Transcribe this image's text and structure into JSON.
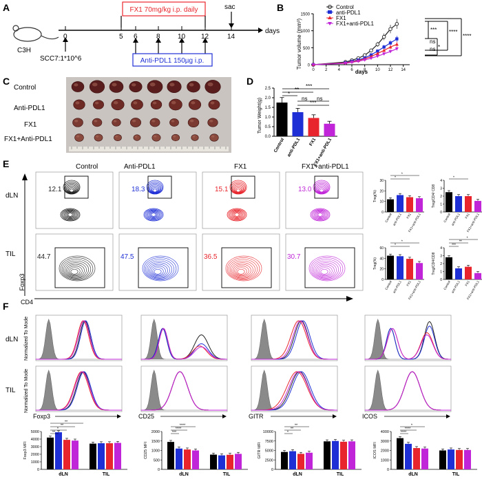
{
  "panels": {
    "A": "A",
    "B": "B",
    "C": "C",
    "D": "D",
    "E": "E",
    "F": "F"
  },
  "panelA": {
    "mouse_label": "C3H",
    "fx1_box": "FX1 70mg/kg i.p. daily",
    "sac": "sac",
    "days": "days",
    "ticks": [
      "0",
      "5",
      "6",
      "8",
      "10",
      "12",
      "14"
    ],
    "inoculation": "SCC7:1*10^6",
    "pdl1_box": "Anti-PDL1 150µg i.p."
  },
  "panelB": {
    "ylabel": "Tumor volume (mm³)",
    "xlabel": "days",
    "legend": [
      "Control",
      "anti-PDL1",
      "FX1",
      "FX1+anti-PDL1"
    ],
    "sig": [
      "***",
      "****",
      "****",
      "*",
      "ns",
      "ns"
    ],
    "chart_data": {
      "type": "line",
      "x": [
        0,
        5,
        6,
        7,
        8,
        9,
        10,
        11,
        12,
        13
      ],
      "xticks": [
        "0",
        "2",
        "4",
        "6",
        "8",
        "10",
        "12",
        "14"
      ],
      "yticks": [
        "0",
        "500",
        "1000",
        "1500"
      ],
      "xlim": [
        0,
        15
      ],
      "ylim": [
        0,
        1500
      ],
      "series": [
        {
          "name": "Control",
          "color": "#222222",
          "values": [
            0,
            80,
            130,
            190,
            280,
            420,
            600,
            820,
            1050,
            1200
          ]
        },
        {
          "name": "anti-PDL1",
          "color": "#1f2fd6",
          "values": [
            0,
            60,
            100,
            140,
            200,
            290,
            400,
            520,
            640,
            760
          ]
        },
        {
          "name": "FX1",
          "color": "#e8252c",
          "values": [
            0,
            55,
            90,
            120,
            170,
            240,
            330,
            420,
            520,
            600
          ]
        },
        {
          "name": "FX1+anti-PDL1",
          "color": "#c025d8",
          "values": [
            0,
            40,
            70,
            100,
            140,
            190,
            250,
            320,
            390,
            470
          ]
        }
      ]
    }
  },
  "panelC": {
    "rows": [
      "Control",
      "Anti-PDL1",
      "FX1",
      "FX1+Anti-PDL1"
    ]
  },
  "panelD": {
    "ylabel": "Tumor Weight(g)",
    "sig": [
      "*",
      "**",
      "***",
      "ns",
      "ns",
      "***"
    ],
    "chart_data": {
      "type": "bar",
      "categories": [
        "Control",
        "anti-PDL1",
        "FX1",
        "FX1+anti-PDL1"
      ],
      "values": [
        1.75,
        1.25,
        0.95,
        0.65
      ],
      "colors": [
        "#000000",
        "#1f2fd6",
        "#e8252c",
        "#c025d8"
      ],
      "yticks": [
        "0.0",
        "0.5",
        "1.0",
        "1.5",
        "2.0",
        "2.5"
      ],
      "ylim": [
        0,
        2.5
      ]
    }
  },
  "panelE": {
    "columns": [
      "Control",
      "Anti-PDL1",
      "FX1",
      "FX1+anti-PDL1"
    ],
    "rows": [
      "dLN",
      "TIL"
    ],
    "dln_values": [
      "12.1",
      "18.3",
      "15.1",
      "13.0"
    ],
    "til_values": [
      "44.7",
      "47.5",
      "36.5",
      "30.7"
    ],
    "value_colors": [
      "#222222",
      "#1f2fd6",
      "#e8252c",
      "#c025d8"
    ],
    "ylabel": "Foxp3",
    "xlabel": "CD4",
    "bar_charts": [
      {
        "ylabel": "Treg(%)",
        "yticks": [
          "0",
          "10",
          "20",
          "30"
        ],
        "ylim": [
          0,
          30
        ],
        "values": [
          12,
          16,
          14,
          13
        ],
        "sig": [
          "*",
          "*"
        ]
      },
      {
        "ylabel": "Treg/CD4/ CD8",
        "yticks": [
          "0",
          "1",
          "2",
          "3",
          "4"
        ],
        "ylim": [
          0,
          4
        ],
        "values": [
          2.5,
          2.0,
          2.0,
          1.4
        ],
        "sig": [
          "*"
        ]
      },
      {
        "ylabel": "Treg(%)",
        "yticks": [
          "0",
          "20",
          "40",
          "60"
        ],
        "ylim": [
          0,
          60
        ],
        "values": [
          45,
          44,
          39,
          31
        ],
        "sig": [
          "*",
          "*"
        ]
      },
      {
        "ylabel": "Treg/CD4/CD8",
        "yticks": [
          "0",
          "1",
          "2",
          "3",
          "4"
        ],
        "ylim": [
          0,
          4
        ],
        "values": [
          2.8,
          1.4,
          1.6,
          0.8
        ],
        "sig": [
          "***",
          "**",
          "*"
        ]
      }
    ],
    "categories": [
      "Control",
      "anti-PDL1",
      "FX1",
      "FX1+anti-PDL1"
    ]
  },
  "panelF": {
    "rows": [
      "dLN",
      "TIL"
    ],
    "ylabel": "Normalized To Mode",
    "markers": [
      "Foxp3",
      "CD25",
      "GITR",
      "ICOS"
    ],
    "mfi_labels": [
      "Foxp3 MFI",
      "CD25 MFI",
      "GITR MFI",
      "ICOS MFI"
    ],
    "group_labels": [
      "dLN",
      "TIL"
    ],
    "mfi_charts": [
      {
        "yticks": [
          "0",
          "1000",
          "2000",
          "3000",
          "4000",
          "5000"
        ],
        "ylim": [
          0,
          5000
        ],
        "dln": [
          4200,
          4900,
          3900,
          3800
        ],
        "til": [
          3400,
          3450,
          3450,
          3500
        ],
        "sig": [
          "**",
          "*",
          "**",
          "**"
        ]
      },
      {
        "yticks": [
          "0",
          "500",
          "1000",
          "1500",
          "2000"
        ],
        "ylim": [
          0,
          2000
        ],
        "dln": [
          1450,
          1100,
          1050,
          1000
        ],
        "til": [
          780,
          740,
          770,
          820
        ],
        "sig": [
          "***",
          "****",
          "****"
        ]
      },
      {
        "yticks": [
          "0",
          "2500",
          "5000",
          "7500",
          "10000"
        ],
        "ylim": [
          0,
          10000
        ],
        "dln": [
          4600,
          4800,
          4100,
          4400
        ],
        "til": [
          7400,
          7500,
          7300,
          7400
        ],
        "sig": [
          "*",
          "**",
          "**"
        ]
      },
      {
        "yticks": [
          "0",
          "1000",
          "2000",
          "3000",
          "4000"
        ],
        "ylim": [
          0,
          4000
        ],
        "dln": [
          3300,
          2700,
          2250,
          2200
        ],
        "til": [
          2000,
          2100,
          2050,
          2050
        ],
        "sig": [
          "****",
          "****",
          "*"
        ]
      }
    ]
  }
}
